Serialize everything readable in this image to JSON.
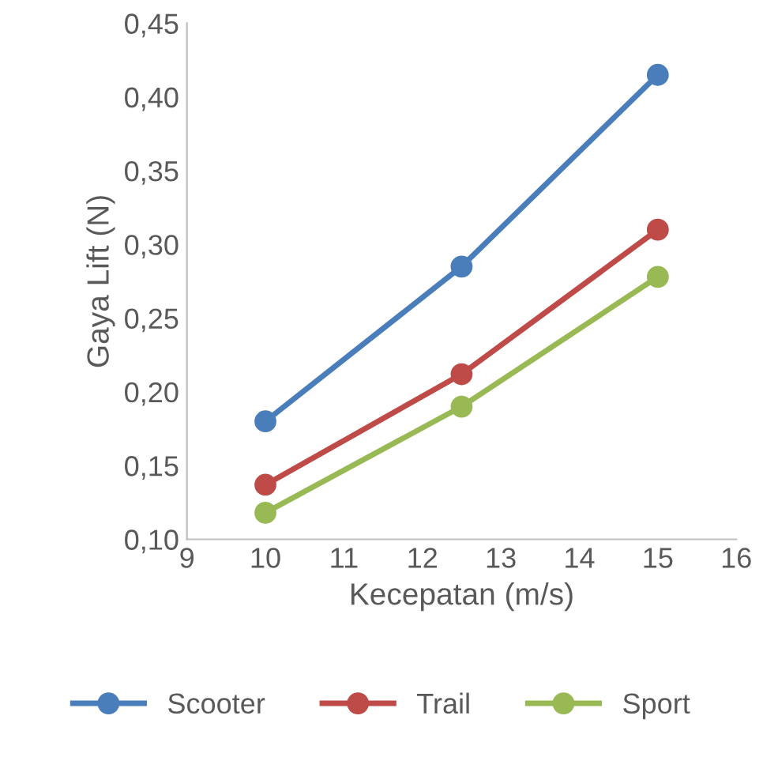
{
  "chart_data": {
    "type": "line",
    "xlabel": "Kecepatan (m/s)",
    "ylabel": "Gaya Lift (N)",
    "x": [
      10,
      12.5,
      15
    ],
    "series": [
      {
        "name": "Scooter",
        "color": "#4a7ebb",
        "values": [
          0.18,
          0.285,
          0.415
        ]
      },
      {
        "name": "Trail",
        "color": "#be4b48",
        "values": [
          0.137,
          0.212,
          0.31
        ]
      },
      {
        "name": "Sport",
        "color": "#98b954",
        "values": [
          0.118,
          0.19,
          0.278
        ]
      }
    ],
    "xlim": [
      9,
      16
    ],
    "xticks": [
      9,
      10,
      11,
      12,
      13,
      14,
      15,
      16
    ],
    "ylim": [
      0.1,
      0.45
    ],
    "yticks": [
      {
        "value": 0.1,
        "label": "0,10"
      },
      {
        "value": 0.15,
        "label": "0,15"
      },
      {
        "value": 0.2,
        "label": "0,20"
      },
      {
        "value": 0.25,
        "label": "0,25"
      },
      {
        "value": 0.3,
        "label": "0,30"
      },
      {
        "value": 0.35,
        "label": "0,35"
      },
      {
        "value": 0.4,
        "label": "0,40"
      },
      {
        "value": 0.45,
        "label": "0,45"
      }
    ],
    "grid": false,
    "legend": "bottom",
    "marker": "circle",
    "line_style": "solid"
  }
}
